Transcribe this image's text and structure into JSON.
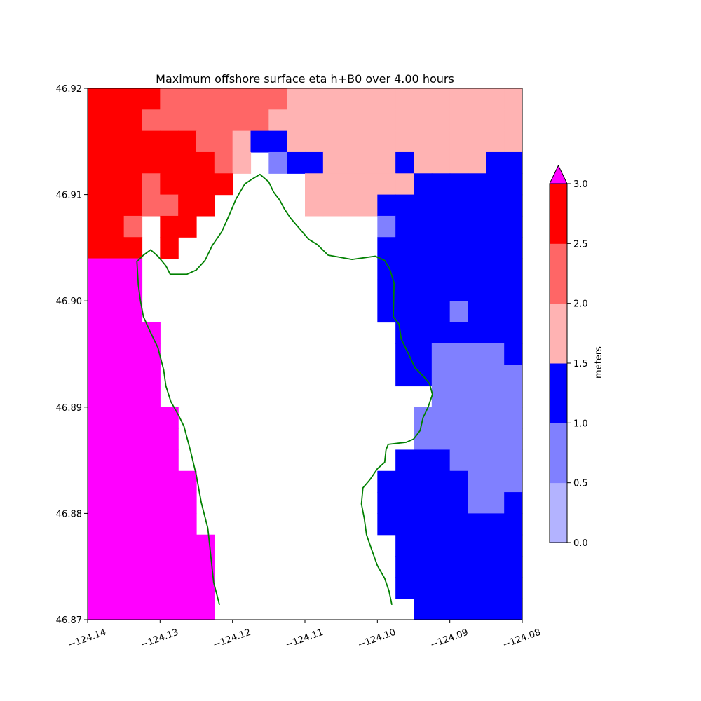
{
  "chart_data": {
    "type": "heatmap",
    "title": "Maximum offshore surface eta h+B0 over 4.00 hours",
    "xlabel": "",
    "ylabel": "",
    "xlim": [
      -124.14,
      -124.08
    ],
    "ylim": [
      46.87,
      46.92
    ],
    "x_ticks": [
      "−124.14",
      "−124.13",
      "−124.12",
      "−124.11",
      "−124.10",
      "−124.09",
      "−124.08"
    ],
    "y_ticks": [
      "46.87",
      "46.88",
      "46.89",
      "46.90",
      "46.91",
      "46.92"
    ],
    "colorbar": {
      "label": "meters",
      "levels": [
        0.0,
        0.5,
        1.0,
        1.5,
        2.0,
        2.5,
        3.0
      ],
      "tick_labels": [
        "0.0",
        "0.5",
        "1.0",
        "1.5",
        "2.0",
        "2.5",
        "3.0"
      ],
      "colors": [
        "#b3b3ff",
        "#8080ff",
        "#0000ff",
        "#ffb3b3",
        "#ff6666",
        "#ff0000"
      ],
      "over_color": "#ff00ff"
    },
    "grid": false,
    "cell_legend": {
      "R": "2.5-3.0",
      "P": "2.0-2.5",
      "L": "1.5-2.0",
      "B": "1.0-1.5",
      "M": "0.5-1.0",
      "O": ">3.0",
      ".": "no data"
    },
    "cells": [
      [
        "R",
        "R",
        "R",
        "R",
        "P",
        "P",
        "P",
        "P",
        "P",
        "P",
        "P",
        "L",
        "L",
        "L",
        "L",
        "L",
        "L",
        "L",
        "L",
        "L",
        "L",
        "L",
        "L",
        "L"
      ],
      [
        "R",
        "R",
        "R",
        "P",
        "P",
        "P",
        "P",
        "P",
        "P",
        "P",
        "L",
        "L",
        "L",
        "L",
        "L",
        "L",
        "L",
        "L",
        "L",
        "L",
        "L",
        "L",
        "L",
        "L"
      ],
      [
        "R",
        "R",
        "R",
        "R",
        "R",
        "R",
        "P",
        "P",
        "L",
        "B",
        "B",
        "L",
        "L",
        "L",
        "L",
        "L",
        "L",
        "L",
        "L",
        "L",
        "L",
        "L",
        "L",
        "L"
      ],
      [
        "R",
        "R",
        "R",
        "R",
        "R",
        "R",
        "R",
        "P",
        "L",
        ".",
        "M",
        "B",
        "B",
        "L",
        "L",
        "L",
        "L",
        "B",
        "L",
        "L",
        "L",
        "L",
        "B",
        "B"
      ],
      [
        "R",
        "R",
        "R",
        "P",
        "R",
        "R",
        "R",
        "R",
        ".",
        ".",
        ".",
        ".",
        "L",
        "L",
        "L",
        "L",
        "L",
        "L",
        "B",
        "B",
        "B",
        "B",
        "B",
        "B"
      ],
      [
        "R",
        "R",
        "R",
        "P",
        "P",
        "R",
        "R",
        ".",
        ".",
        ".",
        ".",
        ".",
        "L",
        "L",
        "L",
        "L",
        "B",
        "B",
        "B",
        "B",
        "B",
        "B",
        "B",
        "B"
      ],
      [
        "R",
        "R",
        "P",
        ".",
        "R",
        "R",
        ".",
        ".",
        ".",
        ".",
        ".",
        ".",
        ".",
        ".",
        ".",
        ".",
        "M",
        "B",
        "B",
        "B",
        "B",
        "B",
        "B",
        "B"
      ],
      [
        "R",
        "R",
        "R",
        ".",
        "R",
        ".",
        ".",
        ".",
        ".",
        ".",
        ".",
        ".",
        ".",
        ".",
        ".",
        ".",
        "B",
        "B",
        "B",
        "B",
        "B",
        "B",
        "B",
        "B"
      ],
      [
        "O",
        "O",
        "O",
        ".",
        ".",
        ".",
        ".",
        ".",
        ".",
        ".",
        ".",
        ".",
        ".",
        ".",
        ".",
        ".",
        "B",
        "B",
        "B",
        "B",
        "B",
        "B",
        "B",
        "B"
      ],
      [
        "O",
        "O",
        "O",
        ".",
        ".",
        ".",
        ".",
        ".",
        ".",
        ".",
        ".",
        ".",
        ".",
        ".",
        ".",
        ".",
        "B",
        "B",
        "B",
        "B",
        "B",
        "B",
        "B",
        "B"
      ],
      [
        "O",
        "O",
        "O",
        ".",
        ".",
        ".",
        ".",
        ".",
        ".",
        ".",
        ".",
        ".",
        ".",
        ".",
        ".",
        ".",
        "B",
        "B",
        "B",
        "B",
        "M",
        "B",
        "B",
        "B"
      ],
      [
        "O",
        "O",
        "O",
        "O",
        ".",
        ".",
        ".",
        ".",
        ".",
        ".",
        ".",
        ".",
        ".",
        ".",
        ".",
        ".",
        ".",
        "B",
        "B",
        "B",
        "B",
        "B",
        "B",
        "B"
      ],
      [
        "O",
        "O",
        "O",
        "O",
        ".",
        ".",
        ".",
        ".",
        ".",
        ".",
        ".",
        ".",
        ".",
        ".",
        ".",
        ".",
        ".",
        "B",
        "B",
        "M",
        "M",
        "M",
        "M",
        "B"
      ],
      [
        "O",
        "O",
        "O",
        "O",
        ".",
        ".",
        ".",
        ".",
        ".",
        ".",
        ".",
        ".",
        ".",
        ".",
        ".",
        ".",
        ".",
        "B",
        "B",
        "M",
        "M",
        "M",
        "M",
        "M"
      ],
      [
        "O",
        "O",
        "O",
        "O",
        ".",
        ".",
        ".",
        ".",
        ".",
        ".",
        ".",
        ".",
        ".",
        ".",
        ".",
        ".",
        ".",
        ".",
        ".",
        "M",
        "M",
        "M",
        "M",
        "M"
      ],
      [
        "O",
        "O",
        "O",
        "O",
        "O",
        ".",
        ".",
        ".",
        ".",
        ".",
        ".",
        ".",
        ".",
        ".",
        ".",
        ".",
        ".",
        ".",
        "M",
        "M",
        "M",
        "M",
        "M",
        "M"
      ],
      [
        "O",
        "O",
        "O",
        "O",
        "O",
        ".",
        ".",
        ".",
        ".",
        ".",
        ".",
        ".",
        ".",
        ".",
        ".",
        ".",
        ".",
        ".",
        "M",
        "M",
        "M",
        "M",
        "M",
        "M"
      ],
      [
        "O",
        "O",
        "O",
        "O",
        "O",
        ".",
        ".",
        ".",
        ".",
        ".",
        ".",
        ".",
        ".",
        ".",
        ".",
        ".",
        ".",
        "B",
        "B",
        "B",
        "M",
        "M",
        "M",
        "M"
      ],
      [
        "O",
        "O",
        "O",
        "O",
        "O",
        "O",
        ".",
        ".",
        ".",
        ".",
        ".",
        ".",
        ".",
        ".",
        ".",
        ".",
        "B",
        "B",
        "B",
        "B",
        "B",
        "M",
        "M",
        "M"
      ],
      [
        "O",
        "O",
        "O",
        "O",
        "O",
        "O",
        ".",
        ".",
        ".",
        ".",
        ".",
        ".",
        ".",
        ".",
        ".",
        ".",
        "B",
        "B",
        "B",
        "B",
        "B",
        "M",
        "M",
        "B"
      ],
      [
        "O",
        "O",
        "O",
        "O",
        "O",
        "O",
        ".",
        ".",
        ".",
        ".",
        ".",
        ".",
        ".",
        ".",
        ".",
        ".",
        "B",
        "B",
        "B",
        "B",
        "B",
        "B",
        "B",
        "B"
      ],
      [
        "O",
        "O",
        "O",
        "O",
        "O",
        "O",
        "O",
        ".",
        ".",
        ".",
        ".",
        ".",
        ".",
        ".",
        ".",
        ".",
        ".",
        "B",
        "B",
        "B",
        "B",
        "B",
        "B",
        "B"
      ],
      [
        "O",
        "O",
        "O",
        "O",
        "O",
        "O",
        "O",
        ".",
        ".",
        ".",
        ".",
        ".",
        ".",
        ".",
        ".",
        ".",
        ".",
        "B",
        "B",
        "B",
        "B",
        "B",
        "B",
        "B"
      ],
      [
        "O",
        "O",
        "O",
        "O",
        "O",
        "O",
        "O",
        ".",
        ".",
        ".",
        ".",
        ".",
        ".",
        ".",
        ".",
        ".",
        ".",
        "B",
        "B",
        "B",
        "B",
        "B",
        "B",
        "B"
      ],
      [
        "O",
        "O",
        "O",
        "O",
        "O",
        "O",
        "O",
        ".",
        ".",
        ".",
        ".",
        ".",
        ".",
        ".",
        ".",
        ".",
        ".",
        ".",
        "B",
        "B",
        "B",
        "B",
        "B",
        "B"
      ]
    ],
    "shoreline_color": "#008000",
    "shoreline": [
      [
        -124.1218,
        46.8714
      ],
      [
        -124.1226,
        46.8735
      ],
      [
        -124.123,
        46.876
      ],
      [
        -124.1234,
        46.8786
      ],
      [
        -124.1243,
        46.881
      ],
      [
        -124.125,
        46.8836
      ],
      [
        -124.1258,
        46.8859
      ],
      [
        -124.1267,
        46.8882
      ],
      [
        -124.1275,
        46.8893
      ],
      [
        -124.1285,
        46.8905
      ],
      [
        -124.1292,
        46.892
      ],
      [
        -124.1295,
        46.8935
      ],
      [
        -124.1303,
        46.8956
      ],
      [
        -124.1313,
        46.897
      ],
      [
        -124.1323,
        46.8985
      ],
      [
        -124.1327,
        46.9
      ],
      [
        -124.133,
        46.9015
      ],
      [
        -124.1332,
        46.9037
      ],
      [
        -124.1323,
        46.9043
      ],
      [
        -124.1313,
        46.9048
      ],
      [
        -124.1303,
        46.9042
      ],
      [
        -124.1292,
        46.9033
      ],
      [
        -124.1286,
        46.9025
      ],
      [
        -124.1263,
        46.9025
      ],
      [
        -124.125,
        46.9029
      ],
      [
        -124.1238,
        46.9038
      ],
      [
        -124.1228,
        46.9052
      ],
      [
        -124.1215,
        46.9065
      ],
      [
        -124.1205,
        46.908
      ],
      [
        -124.1195,
        46.9096
      ],
      [
        -124.1183,
        46.911
      ],
      [
        -124.1172,
        46.9115
      ],
      [
        -124.1162,
        46.9119
      ],
      [
        -124.115,
        46.9112
      ],
      [
        -124.1143,
        46.9102
      ],
      [
        -124.1135,
        46.9095
      ],
      [
        -124.1128,
        46.9086
      ],
      [
        -124.112,
        46.9078
      ],
      [
        -124.1105,
        46.9066
      ],
      [
        -124.1095,
        46.9058
      ],
      [
        -124.1083,
        46.9053
      ],
      [
        -124.1068,
        46.9043
      ],
      [
        -124.1035,
        46.9039
      ],
      [
        -124.1003,
        46.9042
      ],
      [
        -124.099,
        46.9038
      ],
      [
        -124.0983,
        46.903
      ],
      [
        -124.0977,
        46.9017
      ],
      [
        -124.0978,
        46.8985
      ],
      [
        -124.097,
        46.8978
      ],
      [
        -124.0967,
        46.8964
      ],
      [
        -124.0957,
        46.895
      ],
      [
        -124.0948,
        46.8937
      ],
      [
        -124.0935,
        46.8928
      ],
      [
        -124.0928,
        46.8922
      ],
      [
        -124.0924,
        46.8912
      ],
      [
        -124.093,
        46.89
      ],
      [
        -124.0937,
        46.889
      ],
      [
        -124.0941,
        46.8878
      ],
      [
        -124.095,
        46.887
      ],
      [
        -124.096,
        46.8867
      ],
      [
        -124.0985,
        46.8865
      ],
      [
        -124.0988,
        46.886
      ],
      [
        -124.099,
        46.8848
      ],
      [
        -124.1,
        46.8842
      ],
      [
        -124.101,
        46.8832
      ],
      [
        -124.102,
        46.8824
      ],
      [
        -124.1022,
        46.8809
      ],
      [
        -124.1018,
        46.8795
      ],
      [
        -124.1015,
        46.878
      ],
      [
        -124.1008,
        46.8766
      ],
      [
        -124.1,
        46.8751
      ],
      [
        -124.099,
        46.8739
      ],
      [
        -124.0984,
        46.8727
      ],
      [
        -124.098,
        46.8714
      ]
    ]
  }
}
